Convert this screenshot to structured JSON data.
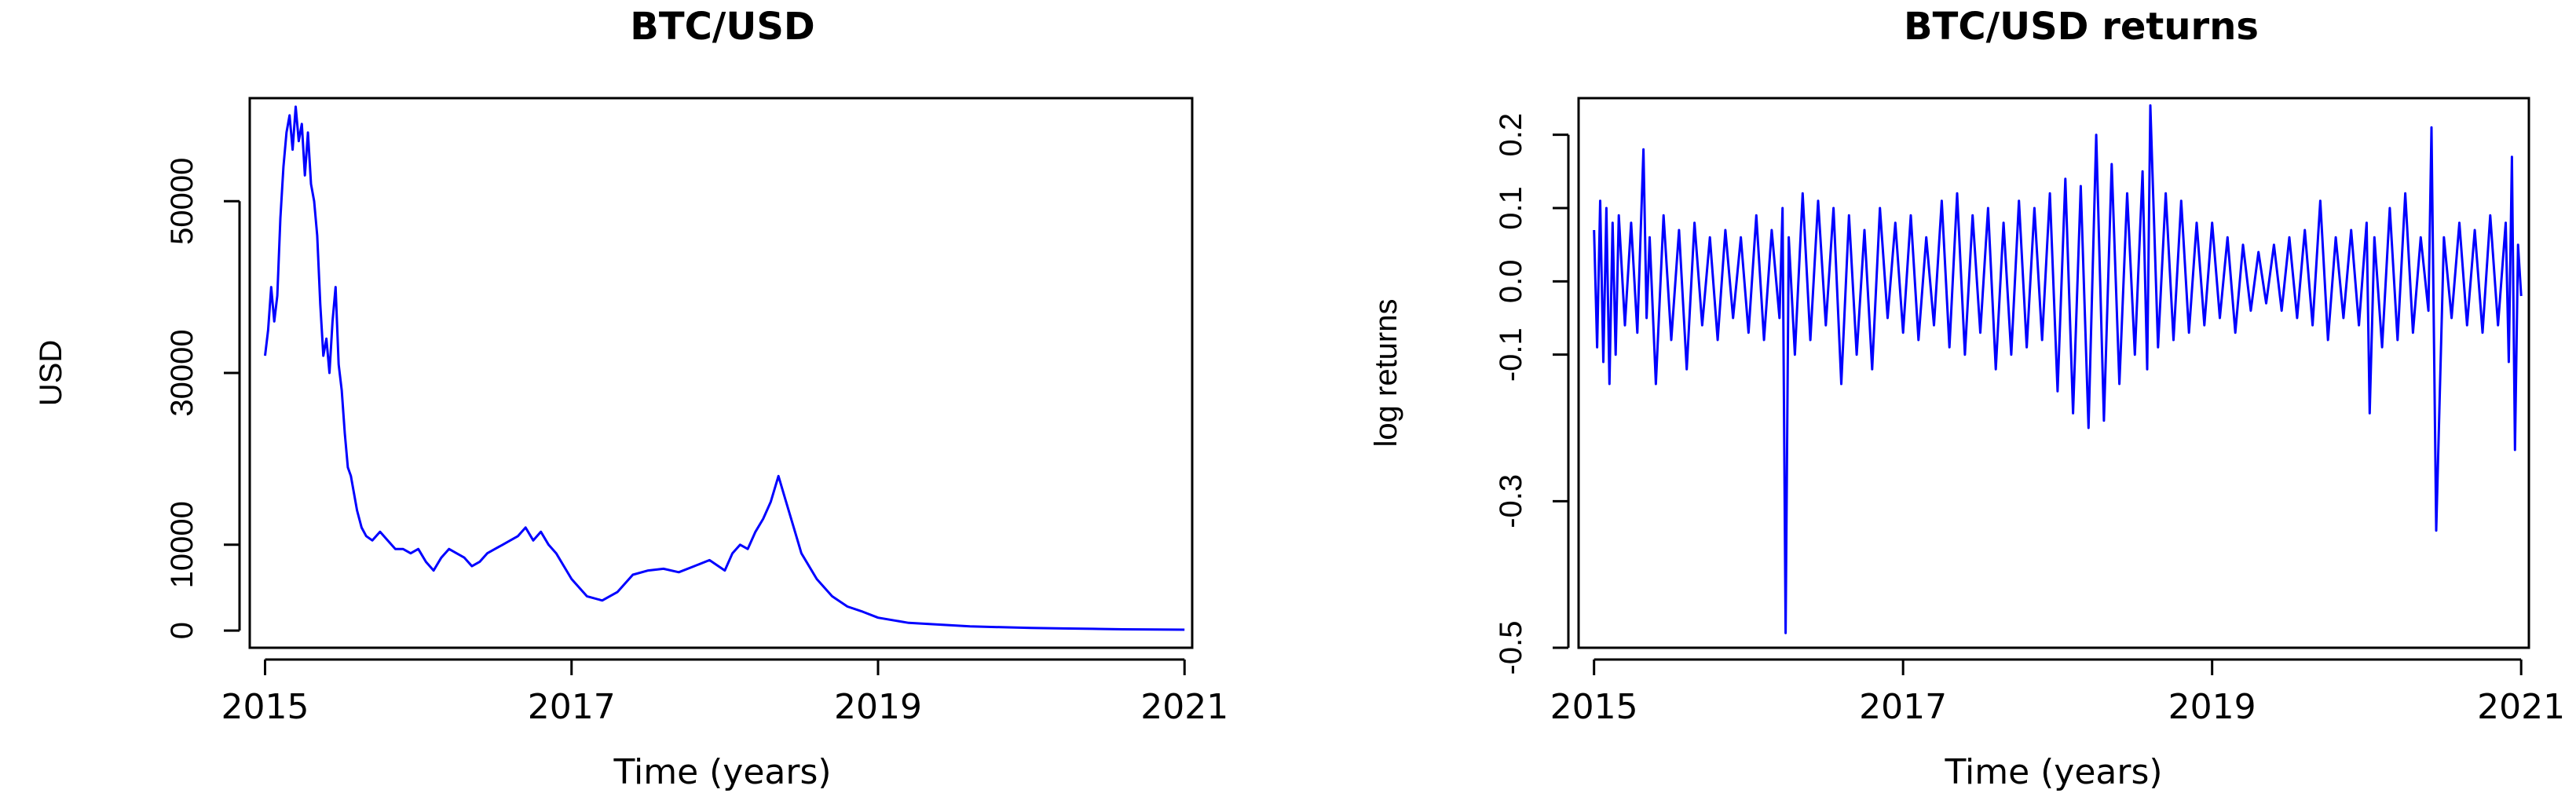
{
  "chart_data": [
    {
      "type": "line",
      "title": "BTC/USD",
      "xlabel": "Time (years)",
      "ylabel": "USD",
      "xlim": [
        2014.9,
        2021.05
      ],
      "ylim": [
        -2000,
        62000
      ],
      "xticks": [
        2015,
        2017,
        2019,
        2021
      ],
      "xtick_labels": [
        "2015",
        "2017",
        "2019",
        "2021"
      ],
      "yticks": [
        0,
        10000,
        30000,
        50000
      ],
      "ytick_labels": [
        "0",
        "10000",
        "30000",
        "50000"
      ],
      "grid": false,
      "legend": "none",
      "color": "#0000ff",
      "series": [
        {
          "x": [
            2015.0,
            2015.02,
            2015.04,
            2015.06,
            2015.08,
            2015.1,
            2015.12,
            2015.14,
            2015.16,
            2015.18,
            2015.2,
            2015.22,
            2015.24,
            2015.26,
            2015.28,
            2015.3,
            2015.32,
            2015.34,
            2015.36,
            2015.38,
            2015.4,
            2015.42,
            2015.44,
            2015.46,
            2015.48,
            2015.5,
            2015.52,
            2015.54,
            2015.56,
            2015.58,
            2015.6,
            2015.63,
            2015.66,
            2015.7,
            2015.75,
            2015.8,
            2015.85,
            2015.9,
            2015.95,
            2016.0,
            2016.05,
            2016.1,
            2016.15,
            2016.2,
            2016.25,
            2016.3,
            2016.35,
            2016.4,
            2016.45,
            2016.5,
            2016.55,
            2016.6,
            2016.65,
            2016.7,
            2016.75,
            2016.8,
            2016.85,
            2016.9,
            2016.95,
            2017.0,
            2017.1,
            2017.2,
            2017.3,
            2017.4,
            2017.5,
            2017.6,
            2017.7,
            2017.8,
            2017.9,
            2018.0,
            2018.05,
            2018.1,
            2018.15,
            2018.2,
            2018.25,
            2018.3,
            2018.35,
            2018.4,
            2018.45,
            2018.5,
            2018.6,
            2018.7,
            2018.8,
            2018.9,
            2019.0,
            2019.2,
            2019.4,
            2019.6,
            2019.8,
            2020.0,
            2020.2,
            2020.4,
            2020.6,
            2020.8,
            2021.0
          ],
          "y": [
            32000,
            35000,
            40000,
            36000,
            39000,
            48000,
            54000,
            58000,
            60000,
            56000,
            61000,
            57000,
            59000,
            53000,
            58000,
            52000,
            50000,
            46000,
            38000,
            32000,
            34000,
            30000,
            36000,
            40000,
            31000,
            28000,
            23000,
            19000,
            18000,
            16000,
            14000,
            12000,
            11000,
            10500,
            11500,
            10500,
            9500,
            9500,
            9000,
            9500,
            8000,
            7000,
            8500,
            9500,
            9000,
            8500,
            7500,
            8000,
            9000,
            9500,
            10000,
            10500,
            11000,
            12000,
            10500,
            11500,
            10000,
            9000,
            7500,
            6000,
            4000,
            3500,
            4500,
            6500,
            7000,
            7200,
            6800,
            7500,
            8200,
            7000,
            9000,
            10000,
            9500,
            11500,
            13000,
            15000,
            18000,
            15000,
            12000,
            9000,
            6000,
            4000,
            2800,
            2200,
            1500,
            900,
            700,
            500,
            400,
            300,
            250,
            200,
            150,
            120,
            100
          ]
        }
      ]
    },
    {
      "type": "line",
      "title": "BTC/USD returns",
      "xlabel": "Time (years)",
      "ylabel": "log returns",
      "xlim": [
        2014.9,
        2021.05
      ],
      "ylim": [
        -0.5,
        0.25
      ],
      "xticks": [
        2015,
        2017,
        2019,
        2021
      ],
      "xtick_labels": [
        "2015",
        "2017",
        "2019",
        "2021"
      ],
      "yticks": [
        -0.5,
        -0.3,
        -0.1,
        0.0,
        0.1,
        0.2
      ],
      "ytick_labels": [
        "-0.5",
        "-0.3",
        "-0.1",
        "0.0",
        "0.1",
        "0.2"
      ],
      "grid": false,
      "legend": "none",
      "color": "#0000ff",
      "series": [
        {
          "x": [
            2015.0,
            2015.02,
            2015.04,
            2015.06,
            2015.08,
            2015.1,
            2015.12,
            2015.14,
            2015.16,
            2015.2,
            2015.24,
            2015.28,
            2015.32,
            2015.34,
            2015.36,
            2015.4,
            2015.45,
            2015.5,
            2015.55,
            2015.6,
            2015.65,
            2015.7,
            2015.75,
            2015.8,
            2015.85,
            2015.9,
            2015.95,
            2016.0,
            2016.05,
            2016.1,
            2016.15,
            2016.2,
            2016.22,
            2016.24,
            2016.26,
            2016.3,
            2016.35,
            2016.4,
            2016.45,
            2016.5,
            2016.55,
            2016.6,
            2016.65,
            2016.7,
            2016.75,
            2016.8,
            2016.85,
            2016.9,
            2016.95,
            2017.0,
            2017.05,
            2017.1,
            2017.15,
            2017.2,
            2017.25,
            2017.3,
            2017.35,
            2017.4,
            2017.45,
            2017.5,
            2017.55,
            2017.6,
            2017.65,
            2017.7,
            2017.75,
            2017.8,
            2017.85,
            2017.9,
            2017.95,
            2018.0,
            2018.05,
            2018.1,
            2018.15,
            2018.2,
            2018.25,
            2018.3,
            2018.35,
            2018.4,
            2018.45,
            2018.5,
            2018.55,
            2018.58,
            2018.6,
            2018.65,
            2018.7,
            2018.75,
            2018.8,
            2018.85,
            2018.9,
            2018.95,
            2019.0,
            2019.05,
            2019.1,
            2019.15,
            2019.2,
            2019.25,
            2019.3,
            2019.35,
            2019.4,
            2019.45,
            2019.5,
            2019.55,
            2019.6,
            2019.65,
            2019.7,
            2019.75,
            2019.8,
            2019.85,
            2019.9,
            2019.95,
            2020.0,
            2020.02,
            2020.05,
            2020.1,
            2020.15,
            2020.2,
            2020.25,
            2020.3,
            2020.35,
            2020.4,
            2020.42,
            2020.45,
            2020.5,
            2020.55,
            2020.6,
            2020.65,
            2020.7,
            2020.75,
            2020.8,
            2020.85,
            2020.9,
            2020.92,
            2020.94,
            2020.96,
            2020.98,
            2021.0
          ],
          "y": [
            0.07,
            -0.09,
            0.11,
            -0.11,
            0.1,
            -0.14,
            0.08,
            -0.1,
            0.09,
            -0.06,
            0.08,
            -0.07,
            0.18,
            -0.05,
            0.06,
            -0.14,
            0.09,
            -0.08,
            0.07,
            -0.12,
            0.08,
            -0.06,
            0.06,
            -0.08,
            0.07,
            -0.05,
            0.06,
            -0.07,
            0.09,
            -0.08,
            0.07,
            -0.05,
            0.1,
            -0.48,
            0.06,
            -0.1,
            0.12,
            -0.08,
            0.11,
            -0.06,
            0.1,
            -0.14,
            0.09,
            -0.1,
            0.07,
            -0.12,
            0.1,
            -0.05,
            0.08,
            -0.07,
            0.09,
            -0.08,
            0.06,
            -0.06,
            0.11,
            -0.09,
            0.12,
            -0.1,
            0.09,
            -0.07,
            0.1,
            -0.12,
            0.08,
            -0.1,
            0.11,
            -0.09,
            0.1,
            -0.08,
            0.12,
            -0.15,
            0.14,
            -0.18,
            0.13,
            -0.2,
            0.2,
            -0.19,
            0.16,
            -0.14,
            0.12,
            -0.1,
            0.15,
            -0.12,
            0.24,
            -0.09,
            0.12,
            -0.08,
            0.11,
            -0.07,
            0.08,
            -0.06,
            0.08,
            -0.05,
            0.06,
            -0.07,
            0.05,
            -0.04,
            0.04,
            -0.03,
            0.05,
            -0.04,
            0.06,
            -0.05,
            0.07,
            -0.06,
            0.11,
            -0.08,
            0.06,
            -0.05,
            0.07,
            -0.06,
            0.08,
            -0.18,
            0.06,
            -0.09,
            0.1,
            -0.08,
            0.12,
            -0.07,
            0.06,
            -0.04,
            0.21,
            -0.34,
            0.06,
            -0.05,
            0.08,
            -0.06,
            0.07,
            -0.07,
            0.09,
            -0.06,
            0.08,
            -0.11,
            0.17,
            -0.23,
            0.05,
            -0.02
          ]
        }
      ]
    }
  ]
}
